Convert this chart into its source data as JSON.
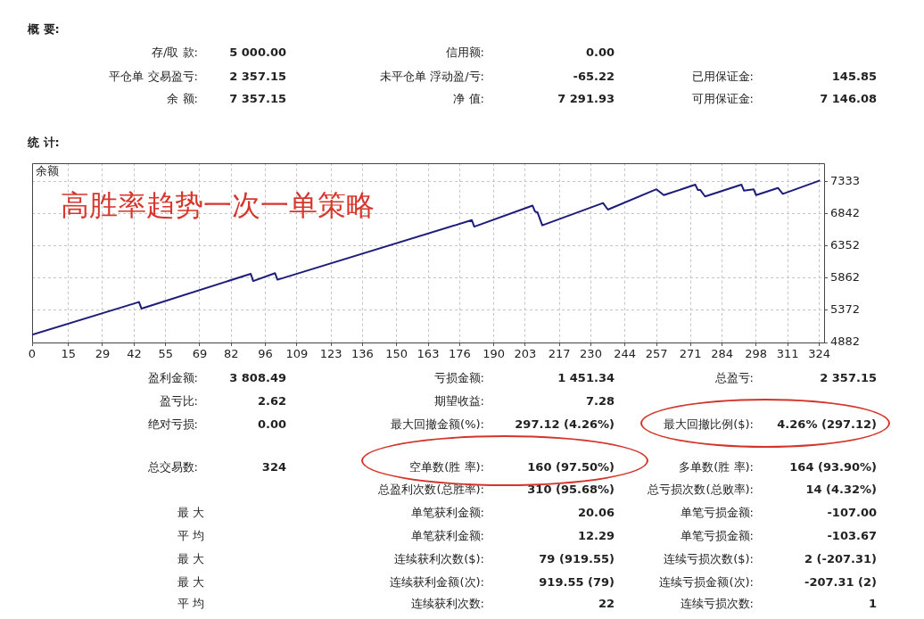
{
  "chart_data": [
    {
      "type": "other",
      "title": "概 要:",
      "annotations": [
        "存/取 款:",
        "5 000.00",
        "信用额:",
        "0.00",
        "平仓单 交易盈亏:",
        "2 357.15",
        "未平仓单 浮动盈/亏:",
        "-65.22",
        "已用保证金:",
        "145.85",
        "余 额:",
        "7 357.15",
        "净 值:",
        "7 291.93",
        "可用保证金:",
        "7 146.08"
      ]
    },
    {
      "type": "line",
      "title": "统 计:",
      "ylabel": "余额",
      "annotations": [
        "高胜率趋势一次一单策略"
      ],
      "x": [
        0,
        44,
        45,
        90,
        91,
        100,
        101,
        181,
        182,
        206,
        207,
        208,
        210,
        235,
        237,
        257,
        260,
        273,
        274,
        275,
        277,
        292,
        293,
        297,
        298,
        307,
        309,
        324
      ],
      "values": [
        5000,
        5500,
        5400,
        5930,
        5820,
        5940,
        5840,
        6750,
        6650,
        6970,
        6880,
        6870,
        6670,
        7010,
        6910,
        7220,
        7130,
        7290,
        7210,
        7210,
        7110,
        7290,
        7200,
        7220,
        7130,
        7240,
        7150,
        7350
      ],
      "color": "#1c1c7a",
      "xlim": [
        0,
        326
      ],
      "xticks": [
        0,
        15,
        29,
        42,
        55,
        69,
        82,
        96,
        109,
        123,
        136,
        150,
        163,
        176,
        190,
        203,
        217,
        230,
        244,
        257,
        271,
        284,
        298,
        311,
        324
      ],
      "ylim": [
        4882,
        7620
      ],
      "yticks": [
        4882,
        5372,
        5862,
        6352,
        6842,
        7333
      ],
      "grid": true
    },
    {
      "type": "other",
      "annotations": [
        "盈利金额:",
        "3 808.49",
        "亏损金额:",
        "1 451.34",
        "总盈亏:",
        "2 357.15",
        "盈亏比:",
        "2.62",
        "期望收益:",
        "7.28",
        "绝对亏损:",
        "0.00",
        "最大回撤金额(%):",
        "297.12 (4.26%)",
        "最大回撤比例($):",
        "4.26% (297.12)",
        "总交易数:",
        "324",
        "空单数(胜 率):",
        "160 (97.50%)",
        "多单数(胜 率):",
        "164 (93.90%)",
        "总盈利次数(总胜率):",
        "310 (95.68%)",
        "总亏损次数(总败率):",
        "14 (4.32%)",
        "最 大",
        "单笔获利金额:",
        "20.06",
        "单笔亏损金额:",
        "-107.00",
        "平 均",
        "单笔获利金额:",
        "12.29",
        "单笔亏损金额:",
        "-103.67",
        "最 大",
        "连续获利次数($):",
        "79 (919.55)",
        "连续亏损次数($):",
        "2 (-207.31)",
        "最 大",
        "连续获利金额(次):",
        "919.55 (79)",
        "连续亏损金额(次):",
        "-207.31 (2)",
        "平 均",
        "连续获利次数:",
        "22",
        "连续亏损次数:",
        "1"
      ]
    }
  ]
}
